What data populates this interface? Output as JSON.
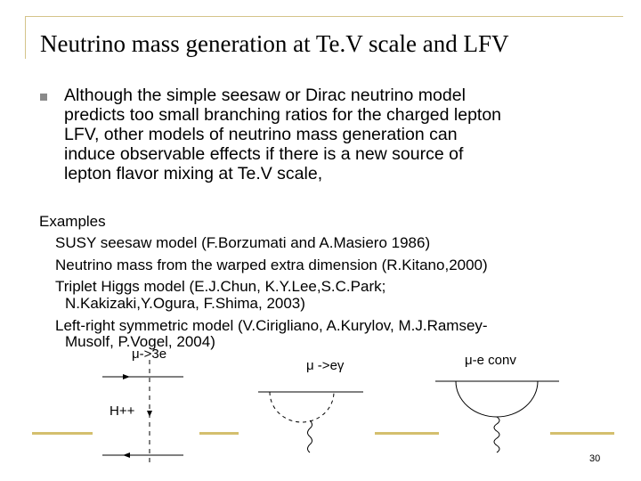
{
  "slide": {
    "title": "Neutrino mass generation at Te.V scale and LFV",
    "bullet": {
      "lines": [
        "Although the simple seesaw or Dirac  neutrino model",
        "predicts too small branching ratios for the charged lepton",
        "LFV, other models of neutrino mass generation can",
        "induce observable effects if there is a new source of",
        "lepton flavor mixing at Te.V scale,"
      ]
    },
    "examples": {
      "heading": "Examples",
      "lines": [
        "SUSY seesaw model (F.Borzumati and A.Masiero 1986)",
        "Neutrino mass from the warped extra dimension (R.Kitano,2000)",
        "Triplet Higgs model (E.J.Chun, K.Y.Lee,S.C.Park;",
        "N.Kakizaki,Y.Ogura, F.Shima, 2003)",
        "Left-right symmetric model (V.Cirigliano, A.Kurylov, M.J.Ramsey-",
        "Musolf, P.Vogel, 2004)"
      ]
    },
    "diagrams": {
      "label_mu3e": "μ->3e",
      "label_mueg": "μ ->eγ",
      "label_mue_conv": "μ-e conv",
      "label_higgs": "H++"
    },
    "page_number": "30",
    "colors": {
      "frame": "#d4c48a",
      "accent_line": "#d4bf6e",
      "bullet": "#8a8a8a"
    }
  }
}
